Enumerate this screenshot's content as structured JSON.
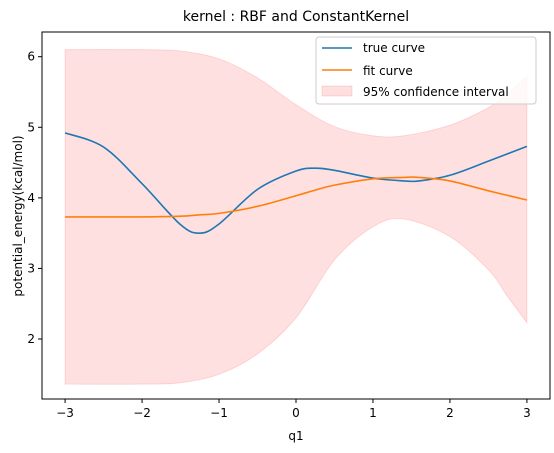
{
  "chart_data": {
    "type": "line",
    "title": "kernel : RBF and ConstantKernel",
    "xlabel": "q1",
    "ylabel": "potential_energy(kcal/mol)",
    "xlim": [
      -3.3,
      3.3
    ],
    "ylim": [
      1.15,
      6.35
    ],
    "xticks": [
      -3,
      -2,
      -1,
      0,
      1,
      2,
      3
    ],
    "yticks": [
      2,
      3,
      4,
      5,
      6
    ],
    "grid": false,
    "legend_position": "top-right",
    "x": [
      -3.0,
      -2.5,
      -2.0,
      -1.5,
      -1.25,
      -1.0,
      -0.5,
      0.0,
      0.25,
      0.5,
      1.0,
      1.4,
      1.6,
      2.0,
      2.5,
      3.0
    ],
    "series": [
      {
        "name": "true curve",
        "color": "#1f77b4",
        "values": [
          4.92,
          4.72,
          4.2,
          3.62,
          3.5,
          3.63,
          4.12,
          4.38,
          4.42,
          4.39,
          4.28,
          4.24,
          4.24,
          4.32,
          4.52,
          4.73
        ]
      },
      {
        "name": "fit curve",
        "color": "#ff7f0e",
        "values": [
          3.73,
          3.73,
          3.73,
          3.74,
          3.76,
          3.78,
          3.88,
          4.03,
          4.11,
          4.18,
          4.27,
          4.29,
          4.29,
          4.24,
          4.1,
          3.97
        ]
      }
    ],
    "band": {
      "name": "95% confidence interval",
      "color": "#ff0000",
      "opacity": 0.12,
      "x": [
        -3.0,
        -2.0,
        -1.5,
        -1.0,
        -0.5,
        0.0,
        0.5,
        1.0,
        1.4,
        2.0,
        2.5,
        2.75,
        3.0
      ],
      "upper": [
        6.1,
        6.1,
        6.08,
        5.97,
        5.7,
        5.32,
        5.01,
        4.88,
        4.88,
        5.03,
        5.28,
        5.48,
        5.72
      ],
      "lower": [
        1.36,
        1.36,
        1.38,
        1.5,
        1.79,
        2.3,
        3.12,
        3.59,
        3.7,
        3.45,
        2.98,
        2.6,
        2.23
      ]
    }
  }
}
